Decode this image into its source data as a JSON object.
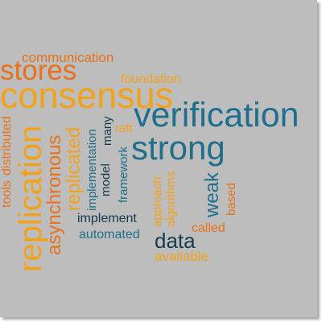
{
  "colors": {
    "background": "#bdbdbd",
    "orange": "#e8711c",
    "amber": "#f2a21a",
    "blue": "#1f6e8c",
    "navy": "#173a4b"
  },
  "words": {
    "communication": "communication",
    "stores": "stores",
    "foundation": "foundation",
    "consensus": "consensus",
    "verification": "verification",
    "raft": "raft",
    "many": "many",
    "strong": "strong",
    "tools": "tools",
    "distributed": "distributed",
    "replication_big": "replication",
    "asynchronous": "asynchronous",
    "replicated": "replicated",
    "implementation": "implementation",
    "model": "model",
    "framework": "framework",
    "approach": "approach",
    "algorithms": "algorithms",
    "weak": "weak",
    "based": "based",
    "implement": "implement",
    "automated": "automated",
    "data": "data",
    "called": "called",
    "available": "available"
  }
}
